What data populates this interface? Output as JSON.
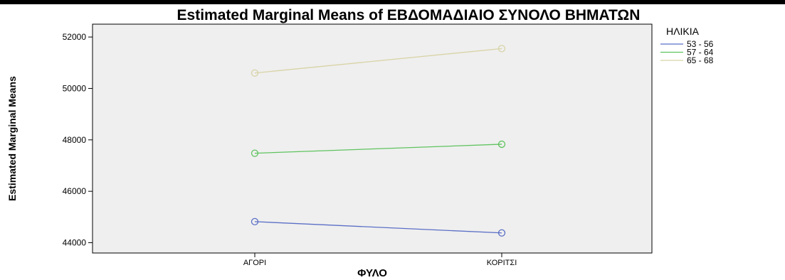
{
  "chart_data": {
    "type": "line",
    "title": "Estimated Marginal Means of ΕΒΔΟΜΑΔΙΑΙΟ ΣΥΝΟΛΟ ΒΗΜΑΤΩΝ",
    "xlabel": "ΦΥΛΟ",
    "ylabel": "Estimated Marginal Means",
    "categories": [
      "ΑΓΟΡΙ",
      "ΚΟΡΙΤΣΙ"
    ],
    "ylim": [
      43600,
      52500
    ],
    "yticks": [
      44000,
      46000,
      48000,
      50000,
      52000
    ],
    "yticklabels": [
      "44000",
      "46000",
      "48000",
      "50000",
      "52000"
    ],
    "legend_title": "ΗΛΙΚΙΑ",
    "legend_position": "right",
    "grid": false,
    "plot_background": "#efefef",
    "series": [
      {
        "name": "53 - 56",
        "color": "#5b6fc6",
        "values": [
          44820,
          44380
        ]
      },
      {
        "name": "57 - 64",
        "color": "#5fc35f",
        "values": [
          47480,
          47830
        ]
      },
      {
        "name": "65 - 68",
        "color": "#d8d3a6",
        "values": [
          50600,
          51550
        ]
      }
    ]
  }
}
